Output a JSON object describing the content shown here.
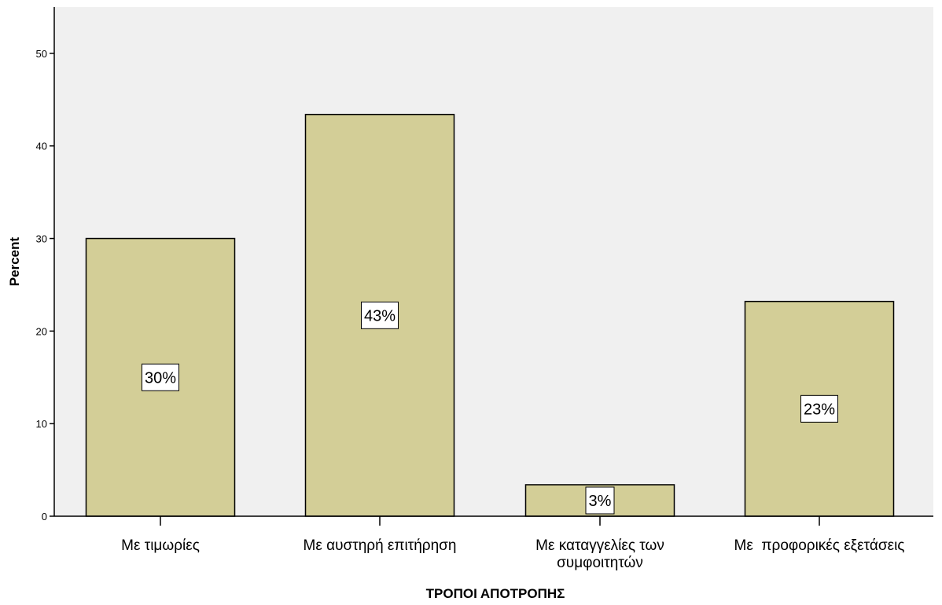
{
  "chart_data": {
    "type": "bar",
    "categories": [
      [
        "Με τιμωρίες"
      ],
      [
        "Με αυστηρή επιτήρηση"
      ],
      [
        "Με καταγγελίες των",
        "συμφοιτητών"
      ],
      [
        "Με  προφορικές εξετάσεις"
      ]
    ],
    "values": [
      30.0,
      43.4,
      3.4,
      23.2
    ],
    "data_labels": [
      "30%",
      "43%",
      "3%",
      "23%"
    ],
    "xlabel": "ΤΡΟΠΟΙ ΑΠΟΤΡΟΠΗΣ",
    "ylabel": "Percent",
    "ylim": [
      0,
      55
    ],
    "yticks": [
      0,
      10,
      20,
      30,
      40,
      50
    ],
    "grid": false,
    "colors": {
      "bar_fill": "#d3ce97",
      "plot_background": "#f0f0f0",
      "axis": "#000000",
      "bar_stroke": "#000000",
      "label_box": "#ffffff"
    }
  }
}
